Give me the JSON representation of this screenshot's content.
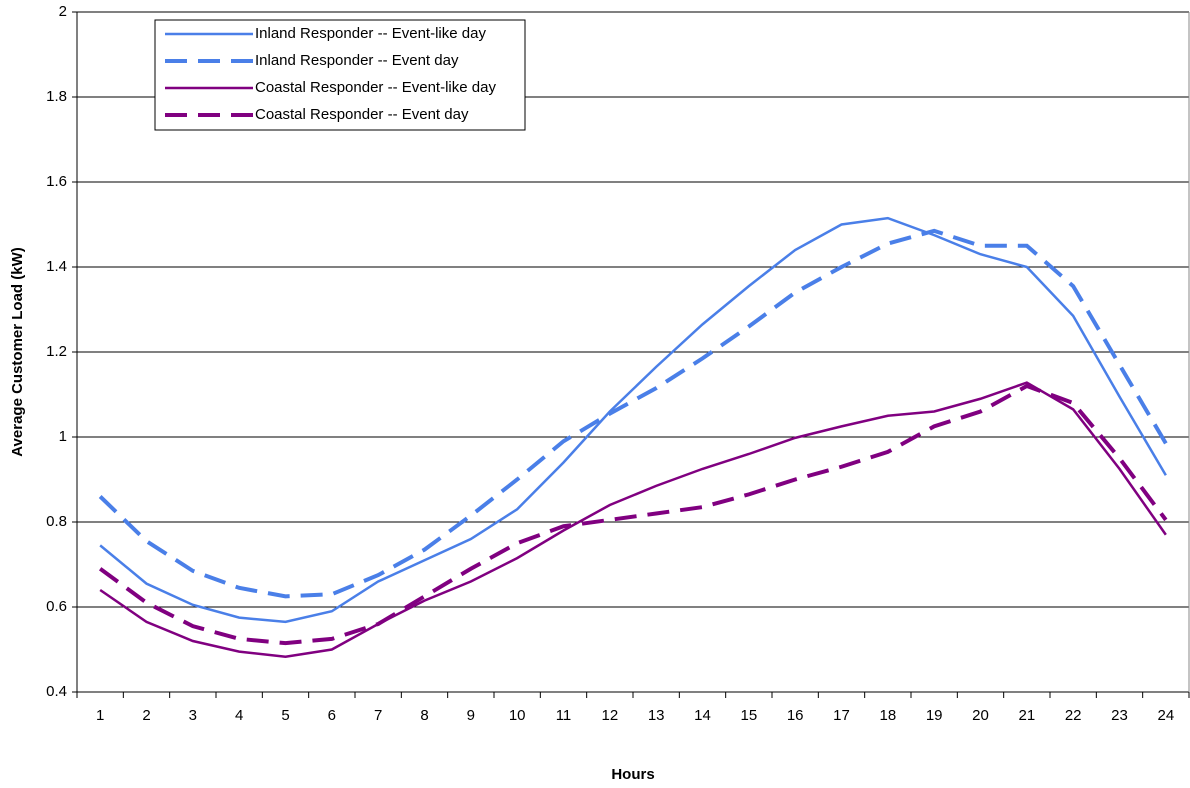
{
  "chart_data": {
    "type": "line",
    "x_label": "Hours",
    "y_label": "Average Customer Load (kW)",
    "categories": [
      1,
      2,
      3,
      4,
      5,
      6,
      7,
      8,
      9,
      10,
      11,
      12,
      13,
      14,
      15,
      16,
      17,
      18,
      19,
      20,
      21,
      22,
      23,
      24
    ],
    "ylim": [
      0.4,
      2
    ],
    "yticks": [
      0.4,
      0.6,
      0.8,
      1,
      1.2,
      1.4,
      1.6,
      1.8,
      2
    ],
    "grid": true,
    "legend": "top-left",
    "series": [
      {
        "name": "Inland Responder -- Event-like day",
        "color": "#4a7fe8",
        "dashed": false,
        "values": [
          0.745,
          0.655,
          0.605,
          0.575,
          0.565,
          0.59,
          0.66,
          0.71,
          0.76,
          0.83,
          0.94,
          1.06,
          1.165,
          1.265,
          1.355,
          1.44,
          1.5,
          1.515,
          1.475,
          1.43,
          1.4,
          1.285,
          1.095,
          0.91
        ]
      },
      {
        "name": "Inland Responder -- Event day",
        "color": "#4a7fe8",
        "dashed": true,
        "values": [
          0.86,
          0.755,
          0.685,
          0.645,
          0.625,
          0.63,
          0.675,
          0.735,
          0.815,
          0.9,
          0.99,
          1.055,
          1.115,
          1.185,
          1.26,
          1.34,
          1.4,
          1.455,
          1.485,
          1.45,
          1.45,
          1.355,
          1.17,
          0.985
        ]
      },
      {
        "name": "Coastal Responder -- Event-like day",
        "color": "#800080",
        "dashed": false,
        "values": [
          0.64,
          0.565,
          0.52,
          0.495,
          0.483,
          0.5,
          0.56,
          0.615,
          0.66,
          0.715,
          0.78,
          0.84,
          0.885,
          0.925,
          0.96,
          0.998,
          1.025,
          1.05,
          1.06,
          1.09,
          1.128,
          1.065,
          0.925,
          0.77
        ]
      },
      {
        "name": "Coastal Responder -- Event day",
        "color": "#800080",
        "dashed": true,
        "values": [
          0.69,
          0.61,
          0.555,
          0.525,
          0.515,
          0.525,
          0.56,
          0.625,
          0.69,
          0.75,
          0.79,
          0.805,
          0.82,
          0.835,
          0.865,
          0.9,
          0.93,
          0.965,
          1.025,
          1.06,
          1.12,
          1.08,
          0.95,
          0.805
        ]
      }
    ]
  }
}
